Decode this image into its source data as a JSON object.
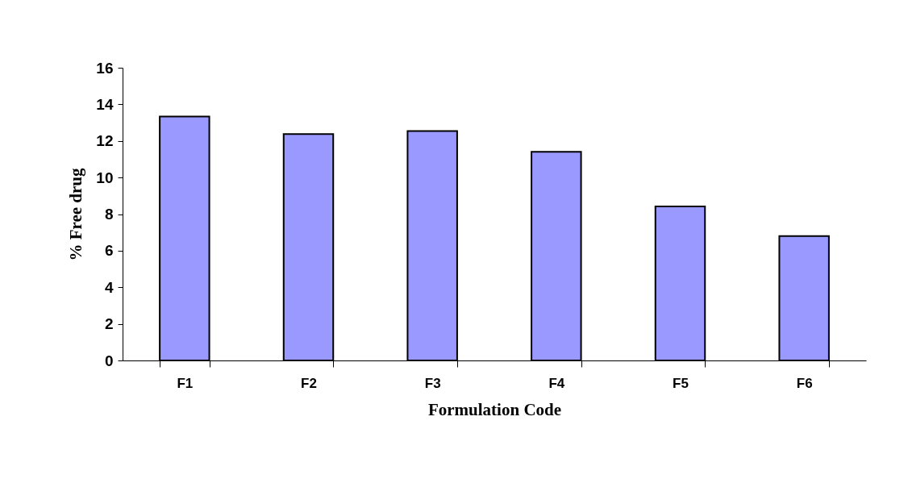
{
  "chart_data": {
    "type": "bar",
    "xlabel": "Formulation Code",
    "ylabel": "% Free drug",
    "categories": [
      "F1",
      "F2",
      "F3",
      "F4",
      "F5",
      "F6"
    ],
    "values": [
      13.33,
      12.37,
      12.54,
      11.4,
      8.42,
      6.8
    ],
    "color": "#9999ff",
    "ylim": [
      0,
      16
    ],
    "yticks": [
      0,
      2,
      4,
      6,
      8,
      10,
      12,
      14,
      16
    ],
    "grid": false
  }
}
